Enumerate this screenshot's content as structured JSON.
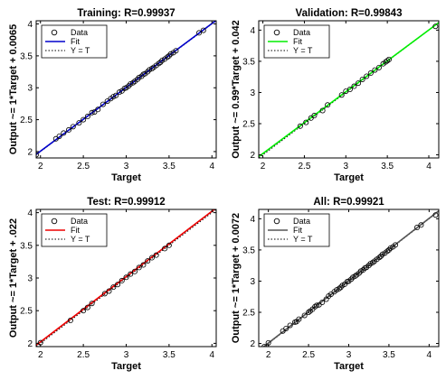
{
  "chart_data": [
    {
      "type": "scatter",
      "title": "Training: R=0.99937",
      "xlabel": "Target",
      "ylabel": "Output ~= 1*Target + 0.0065",
      "xlim": [
        1.95,
        4.05
      ],
      "ylim": [
        1.9,
        4.05
      ],
      "xticks": [
        2,
        2.5,
        3,
        3.5,
        4
      ],
      "yticks": [
        2,
        2.5,
        3,
        3.5,
        4
      ],
      "fit": {
        "slope": 1.0,
        "intercept": 0.0065,
        "color": "#0000cc"
      },
      "legend": {
        "position": "top-left",
        "entries": [
          "Data",
          "Fit",
          "Y = T"
        ]
      },
      "points": [
        [
          1.95,
          1.95
        ],
        [
          2.18,
          2.2
        ],
        [
          2.22,
          2.24
        ],
        [
          2.27,
          2.29
        ],
        [
          2.33,
          2.34
        ],
        [
          2.38,
          2.39
        ],
        [
          2.45,
          2.45
        ],
        [
          2.5,
          2.5
        ],
        [
          2.55,
          2.55
        ],
        [
          2.6,
          2.61
        ],
        [
          2.63,
          2.62
        ],
        [
          2.67,
          2.66
        ],
        [
          2.73,
          2.74
        ],
        [
          2.78,
          2.79
        ],
        [
          2.82,
          2.83
        ],
        [
          2.85,
          2.86
        ],
        [
          2.88,
          2.88
        ],
        [
          2.92,
          2.93
        ],
        [
          2.95,
          2.95
        ],
        [
          2.98,
          2.99
        ],
        [
          3.0,
          3.0
        ],
        [
          3.03,
          3.03
        ],
        [
          3.05,
          3.06
        ],
        [
          3.08,
          3.08
        ],
        [
          3.1,
          3.1
        ],
        [
          3.13,
          3.13
        ],
        [
          3.15,
          3.16
        ],
        [
          3.18,
          3.18
        ],
        [
          3.2,
          3.21
        ],
        [
          3.22,
          3.22
        ],
        [
          3.25,
          3.25
        ],
        [
          3.27,
          3.28
        ],
        [
          3.3,
          3.3
        ],
        [
          3.32,
          3.32
        ],
        [
          3.35,
          3.35
        ],
        [
          3.38,
          3.38
        ],
        [
          3.4,
          3.4
        ],
        [
          3.42,
          3.43
        ],
        [
          3.45,
          3.45
        ],
        [
          3.48,
          3.48
        ],
        [
          3.5,
          3.5
        ],
        [
          3.52,
          3.53
        ],
        [
          3.55,
          3.55
        ],
        [
          3.58,
          3.58
        ],
        [
          3.85,
          3.86
        ],
        [
          3.9,
          3.9
        ]
      ]
    },
    {
      "type": "scatter",
      "title": "Validation: R=0.99843",
      "xlabel": "Target",
      "ylabel": "Output ~= 0.99*Target + 0.042",
      "xlim": [
        1.95,
        4.12
      ],
      "ylim": [
        1.95,
        4.15
      ],
      "xticks": [
        2,
        2.5,
        3,
        3.5,
        4
      ],
      "yticks": [
        2,
        2.5,
        3,
        3.5,
        4
      ],
      "fit": {
        "slope": 0.99,
        "intercept": 0.042,
        "color": "#00ee00"
      },
      "legend": {
        "position": "top-left",
        "entries": [
          "Data",
          "Fit",
          "Y = T"
        ]
      },
      "points": [
        [
          2.45,
          2.46
        ],
        [
          2.52,
          2.52
        ],
        [
          2.58,
          2.59
        ],
        [
          2.62,
          2.63
        ],
        [
          2.72,
          2.71
        ],
        [
          2.78,
          2.8
        ],
        [
          2.95,
          2.96
        ],
        [
          3.0,
          3.02
        ],
        [
          3.05,
          3.05
        ],
        [
          3.1,
          3.1
        ],
        [
          3.15,
          3.15
        ],
        [
          3.2,
          3.21
        ],
        [
          3.25,
          3.26
        ],
        [
          3.3,
          3.31
        ],
        [
          3.35,
          3.36
        ],
        [
          3.4,
          3.4
        ],
        [
          3.45,
          3.46
        ],
        [
          3.48,
          3.49
        ],
        [
          3.5,
          3.51
        ],
        [
          3.52,
          3.53
        ],
        [
          4.08,
          4.06
        ]
      ]
    },
    {
      "type": "scatter",
      "title": "Test: R=0.99912",
      "xlabel": "Target",
      "ylabel": "Output ~= 1*Target + .022",
      "xlim": [
        1.95,
        4.05
      ],
      "ylim": [
        1.95,
        4.05
      ],
      "xticks": [
        2,
        2.5,
        3,
        3.5,
        4
      ],
      "yticks": [
        2,
        2.5,
        3,
        3.5,
        4
      ],
      "fit": {
        "slope": 1.0,
        "intercept": 0.022,
        "color": "#ee0000"
      },
      "legend": {
        "position": "top-left",
        "entries": [
          "Data",
          "Fit",
          "Y = T"
        ]
      },
      "points": [
        [
          2.0,
          2.01
        ],
        [
          2.35,
          2.35
        ],
        [
          2.5,
          2.5
        ],
        [
          2.55,
          2.55
        ],
        [
          2.6,
          2.61
        ],
        [
          2.75,
          2.76
        ],
        [
          2.8,
          2.8
        ],
        [
          2.85,
          2.86
        ],
        [
          2.9,
          2.9
        ],
        [
          2.95,
          2.96
        ],
        [
          3.0,
          3.01
        ],
        [
          3.05,
          3.06
        ],
        [
          3.1,
          3.1
        ],
        [
          3.15,
          3.16
        ],
        [
          3.2,
          3.2
        ],
        [
          3.25,
          3.26
        ],
        [
          3.3,
          3.31
        ],
        [
          3.35,
          3.35
        ],
        [
          3.45,
          3.45
        ],
        [
          3.5,
          3.5
        ]
      ]
    },
    {
      "type": "scatter",
      "title": "All: R=0.99921",
      "xlabel": "Target",
      "ylabel": "Output ~= 1*Target + 0.0072",
      "xlim": [
        1.88,
        4.12
      ],
      "ylim": [
        1.95,
        4.15
      ],
      "xticks": [
        2,
        2.5,
        3,
        3.5,
        4
      ],
      "yticks": [
        2,
        2.5,
        3,
        3.5,
        4
      ],
      "fit": {
        "slope": 1.0,
        "intercept": 0.0072,
        "color": "#555555"
      },
      "legend": {
        "position": "top-left",
        "entries": [
          "Data",
          "Fit",
          "Y = T"
        ]
      },
      "points": [
        [
          1.95,
          1.95
        ],
        [
          2.0,
          2.01
        ],
        [
          2.18,
          2.2
        ],
        [
          2.22,
          2.24
        ],
        [
          2.27,
          2.29
        ],
        [
          2.33,
          2.34
        ],
        [
          2.35,
          2.35
        ],
        [
          2.38,
          2.39
        ],
        [
          2.45,
          2.45
        ],
        [
          2.5,
          2.5
        ],
        [
          2.52,
          2.52
        ],
        [
          2.55,
          2.55
        ],
        [
          2.58,
          2.59
        ],
        [
          2.6,
          2.61
        ],
        [
          2.63,
          2.62
        ],
        [
          2.67,
          2.66
        ],
        [
          2.72,
          2.71
        ],
        [
          2.75,
          2.76
        ],
        [
          2.78,
          2.79
        ],
        [
          2.82,
          2.83
        ],
        [
          2.85,
          2.86
        ],
        [
          2.88,
          2.88
        ],
        [
          2.9,
          2.9
        ],
        [
          2.92,
          2.93
        ],
        [
          2.95,
          2.95
        ],
        [
          2.98,
          2.99
        ],
        [
          3.0,
          3.0
        ],
        [
          3.03,
          3.03
        ],
        [
          3.05,
          3.06
        ],
        [
          3.08,
          3.08
        ],
        [
          3.1,
          3.1
        ],
        [
          3.13,
          3.13
        ],
        [
          3.15,
          3.16
        ],
        [
          3.18,
          3.18
        ],
        [
          3.2,
          3.21
        ],
        [
          3.22,
          3.22
        ],
        [
          3.25,
          3.25
        ],
        [
          3.27,
          3.28
        ],
        [
          3.3,
          3.3
        ],
        [
          3.32,
          3.32
        ],
        [
          3.35,
          3.35
        ],
        [
          3.38,
          3.38
        ],
        [
          3.4,
          3.4
        ],
        [
          3.42,
          3.43
        ],
        [
          3.45,
          3.45
        ],
        [
          3.48,
          3.48
        ],
        [
          3.5,
          3.5
        ],
        [
          3.52,
          3.53
        ],
        [
          3.55,
          3.55
        ],
        [
          3.58,
          3.58
        ],
        [
          3.85,
          3.86
        ],
        [
          3.9,
          3.9
        ],
        [
          4.08,
          4.06
        ]
      ]
    }
  ]
}
